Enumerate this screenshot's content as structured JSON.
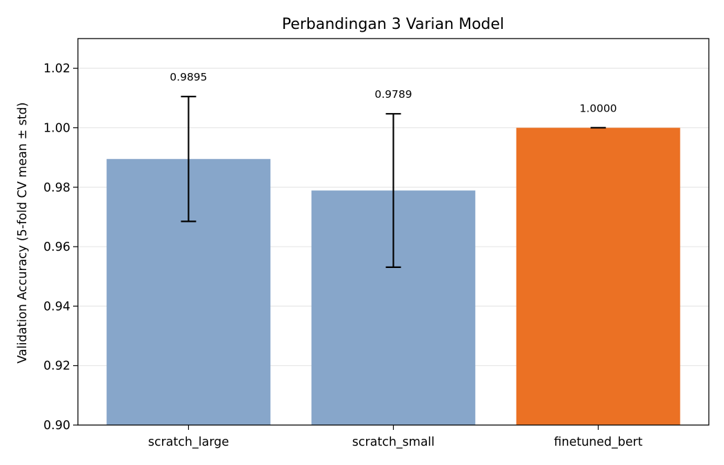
{
  "chart_data": {
    "type": "bar",
    "title": "Perbandingan 3 Varian Model",
    "xlabel": "",
    "ylabel": "Validation Accuracy (5-fold CV mean ± std)",
    "ylim": [
      0.9,
      1.03
    ],
    "yticks": [
      0.9,
      0.92,
      0.94,
      0.96,
      0.98,
      1.0,
      1.02
    ],
    "ytick_labels": [
      "0.90",
      "0.92",
      "0.94",
      "0.96",
      "0.98",
      "1.00",
      "1.02"
    ],
    "grid": "y",
    "categories": [
      "scratch_large",
      "scratch_small",
      "finetuned_bert"
    ],
    "values": [
      0.9895,
      0.9789,
      1.0
    ],
    "errors": [
      0.021,
      0.0258,
      0.0
    ],
    "value_labels": [
      "0.9895",
      "0.9789",
      "1.0000"
    ],
    "colors": [
      "#87a6ca",
      "#87a6ca",
      "#eb7124"
    ]
  }
}
